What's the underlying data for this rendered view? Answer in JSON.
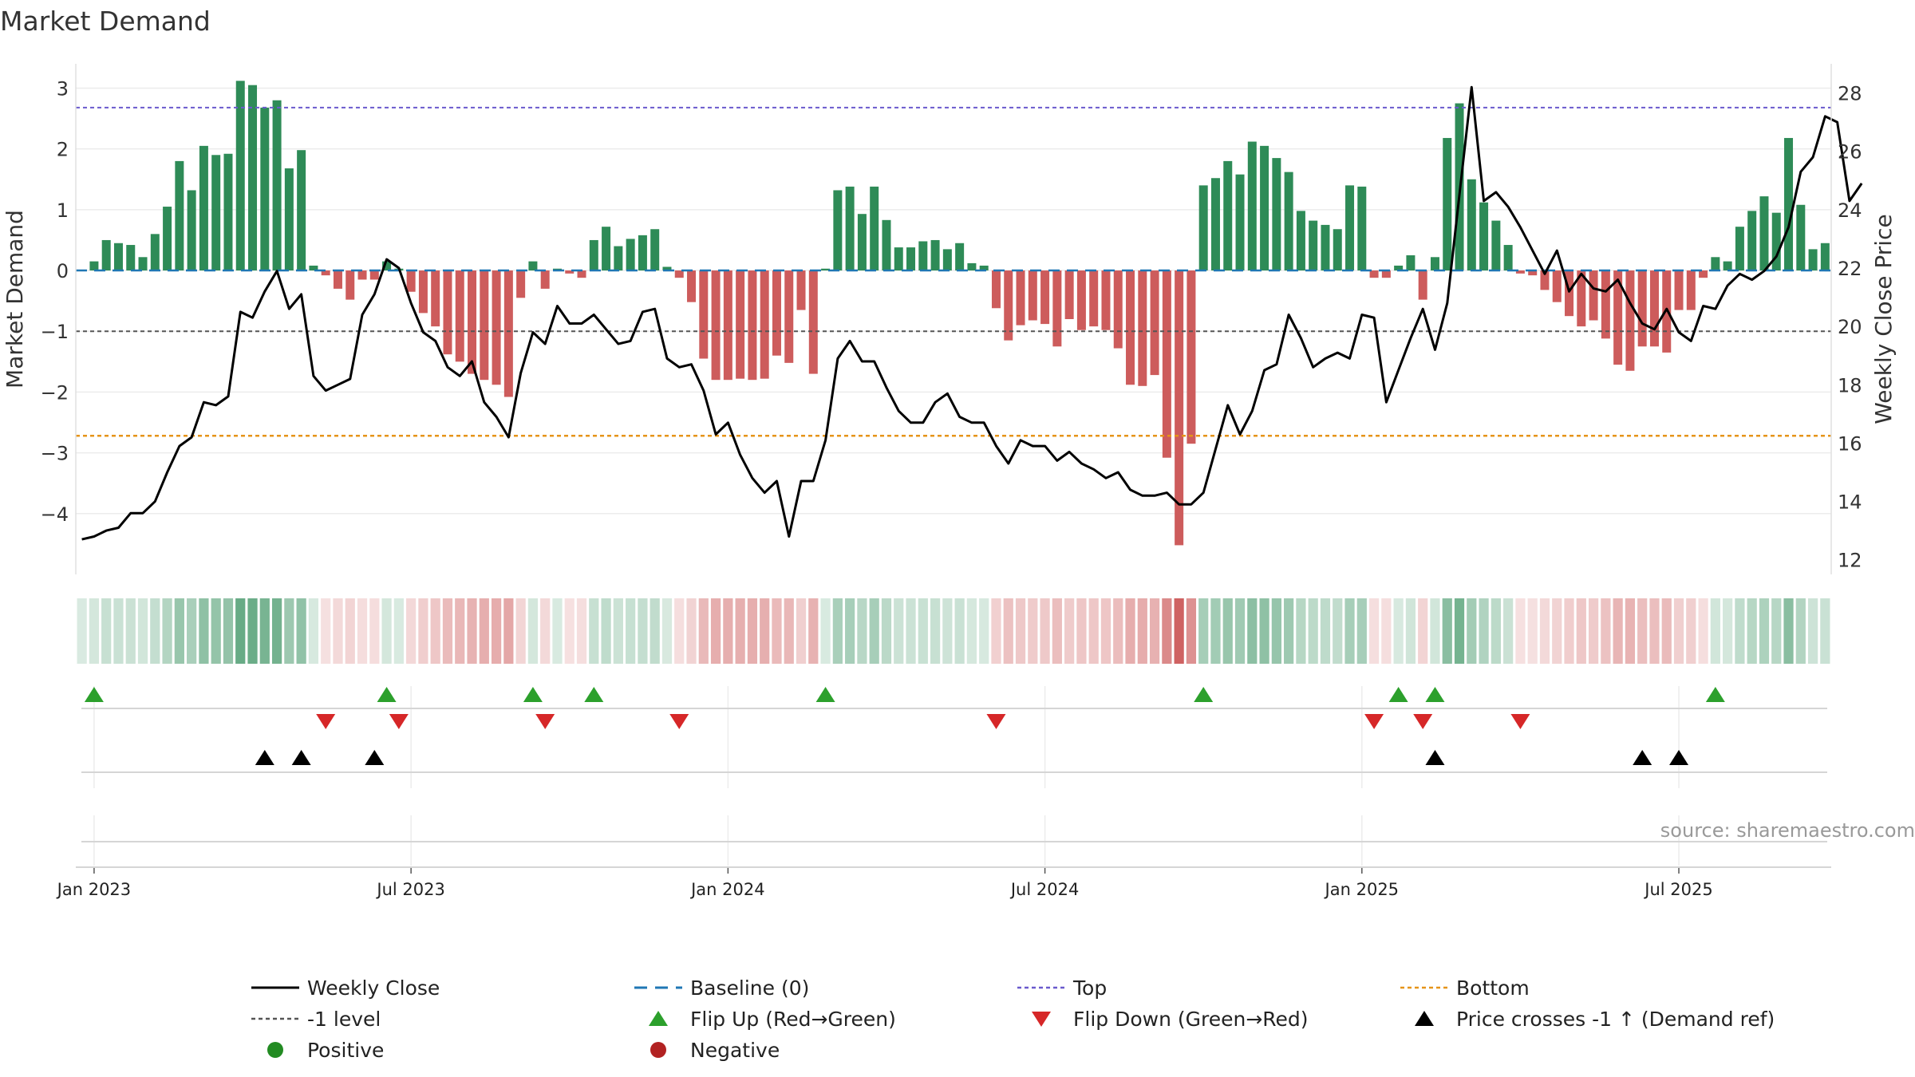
{
  "chart_data": {
    "type": "bar",
    "title": "Market Demand",
    "source": "source: sharemaestro.com",
    "ylabel_left": "Market Demand",
    "ylabel_right": "Weekly Close Price",
    "ylim_left": [
      -5,
      3.4
    ],
    "ylim_right": [
      11.5,
      29
    ],
    "left_ticks": [
      "3",
      "2",
      "1",
      "0",
      "−1",
      "−2",
      "−3",
      "−4"
    ],
    "left_tick_values": [
      3,
      2,
      1,
      0,
      -1,
      -2,
      -3,
      -4
    ],
    "right_ticks": [
      "28",
      "26",
      "24",
      "22",
      "20",
      "18",
      "16",
      "14",
      "12"
    ],
    "right_tick_values": [
      28,
      26,
      24,
      22,
      20,
      18,
      16,
      14,
      12
    ],
    "x_ticks": [
      "Jan 2023",
      "Jul 2023",
      "Jan 2024",
      "Jul 2024",
      "Jan 2025",
      "Jul 2025"
    ],
    "x_tick_weeks": [
      1,
      27,
      53,
      79,
      105,
      131
    ],
    "reference_lines": {
      "top": 2.68,
      "bottom": -2.72,
      "minus_one": -1,
      "baseline": 0
    },
    "colors": {
      "positive": "#2e8b57",
      "negative": "#cd5c5c",
      "price": "#000000",
      "top": "#6a5acd",
      "bottom": "#e69419",
      "minus_one": "#555555",
      "baseline": "#1f77b4",
      "flip_up": "#2ca02c",
      "flip_down": "#d62728",
      "cross": "#000000",
      "dot_positive": "#228b22",
      "dot_negative": "#b22222"
    },
    "demand": [
      0,
      0.15,
      0.5,
      0.45,
      0.42,
      0.22,
      0.6,
      1.05,
      1.8,
      1.32,
      2.05,
      1.9,
      1.92,
      3.12,
      3.05,
      2.68,
      2.8,
      1.68,
      1.98,
      0.08,
      -0.08,
      -0.3,
      -0.48,
      -0.15,
      -0.15,
      0.15,
      0.03,
      -0.35,
      -0.7,
      -0.92,
      -1.38,
      -1.5,
      -1.7,
      -1.8,
      -1.88,
      -2.08,
      -0.45,
      0.15,
      -0.3,
      0.03,
      -0.05,
      -0.12,
      0.5,
      0.72,
      0.4,
      0.52,
      0.58,
      0.68,
      0.06,
      -0.12,
      -0.52,
      -1.45,
      -1.8,
      -1.8,
      -1.78,
      -1.8,
      -1.78,
      -1.4,
      -1.52,
      -0.65,
      -1.7,
      0.03,
      1.32,
      1.38,
      0.93,
      1.38,
      0.83,
      0.38,
      0.38,
      0.48,
      0.5,
      0.35,
      0.45,
      0.12,
      0.08,
      -0.62,
      -1.15,
      -0.9,
      -0.82,
      -0.88,
      -1.25,
      -0.8,
      -0.98,
      -0.92,
      -0.98,
      -1.28,
      -1.88,
      -1.9,
      -1.72,
      -3.08,
      -4.52,
      -2.85,
      1.4,
      1.52,
      1.8,
      1.58,
      2.12,
      2.05,
      1.85,
      1.62,
      0.98,
      0.82,
      0.75,
      0.68,
      1.4,
      1.38,
      -0.12,
      -0.12,
      0.08,
      0.25,
      -0.48,
      0.22,
      2.18,
      2.75,
      1.5,
      1.12,
      0.82,
      0.42,
      -0.05,
      -0.08,
      -0.32,
      -0.52,
      -0.75,
      -0.92,
      -0.82,
      -1.12,
      -1.55,
      -1.65,
      -1.25,
      -1.25,
      -1.35,
      -0.65,
      -0.65,
      -0.12,
      0.22,
      0.15,
      0.72,
      0.98,
      1.22,
      0.95,
      2.18,
      1.08,
      0.35,
      0.45
    ],
    "price": [
      12.7,
      12.8,
      13.0,
      13.1,
      13.6,
      13.6,
      14.0,
      15.0,
      15.9,
      16.2,
      17.4,
      17.3,
      17.6,
      20.5,
      20.3,
      21.2,
      21.9,
      20.6,
      21.1,
      18.3,
      17.8,
      18.0,
      18.2,
      20.4,
      21.1,
      22.3,
      22.0,
      20.8,
      19.8,
      19.5,
      18.6,
      18.3,
      18.8,
      17.4,
      16.9,
      16.2,
      18.4,
      19.8,
      19.4,
      20.7,
      20.1,
      20.1,
      20.4,
      19.9,
      19.4,
      19.5,
      20.5,
      20.6,
      18.9,
      18.6,
      18.7,
      17.8,
      16.3,
      16.7,
      15.6,
      14.8,
      14.3,
      14.7,
      12.8,
      14.7,
      14.7,
      16.1,
      18.9,
      19.5,
      18.8,
      18.8,
      17.9,
      17.1,
      16.7,
      16.7,
      17.4,
      17.7,
      16.9,
      16.7,
      16.7,
      15.9,
      15.3,
      16.1,
      15.9,
      15.9,
      15.4,
      15.7,
      15.3,
      15.1,
      14.8,
      15.0,
      14.4,
      14.2,
      14.2,
      14.3,
      13.9,
      13.9,
      14.3,
      15.8,
      17.3,
      16.3,
      17.1,
      18.5,
      18.7,
      20.4,
      19.6,
      18.6,
      18.9,
      19.1,
      18.9,
      20.4,
      20.3,
      17.4,
      18.5,
      19.6,
      20.6,
      19.2,
      20.8,
      24.5,
      28.2,
      24.3,
      24.6,
      24.1,
      23.4,
      22.6,
      21.8,
      22.6,
      21.2,
      21.8,
      21.3,
      21.2,
      21.6,
      20.8,
      20.1,
      19.9,
      20.6,
      19.8,
      19.5,
      20.7,
      20.6,
      21.4,
      21.8,
      21.6,
      21.9,
      22.4,
      23.4,
      25.3,
      25.8,
      27.2,
      27.0,
      24.3,
      24.9
    ],
    "flip_up_weeks": [
      1,
      25,
      37,
      42,
      61,
      92,
      108,
      111,
      134
    ],
    "flip_down_weeks": [
      20,
      26,
      38,
      49,
      75,
      106,
      110,
      118
    ],
    "cross_weeks": [
      15,
      18,
      24,
      111,
      128,
      131
    ],
    "legend": [
      {
        "label": "Weekly Close",
        "symbol": "line"
      },
      {
        "label": "Baseline (0)",
        "symbol": "dash"
      },
      {
        "label": "Top",
        "symbol": "dot-purple"
      },
      {
        "label": "Bottom",
        "symbol": "dot-orange"
      },
      {
        "label": "-1 level",
        "symbol": "dot-gray"
      },
      {
        "label": "Flip Up (Red→Green)",
        "symbol": "tri-up-green"
      },
      {
        "label": "Flip Down (Green→Red)",
        "symbol": "tri-down-red"
      },
      {
        "label": "Price crosses -1 ↑ (Demand ref)",
        "symbol": "tri-up-black"
      },
      {
        "label": "Positive",
        "symbol": "circle-green"
      },
      {
        "label": "Negative",
        "symbol": "circle-red"
      }
    ]
  }
}
